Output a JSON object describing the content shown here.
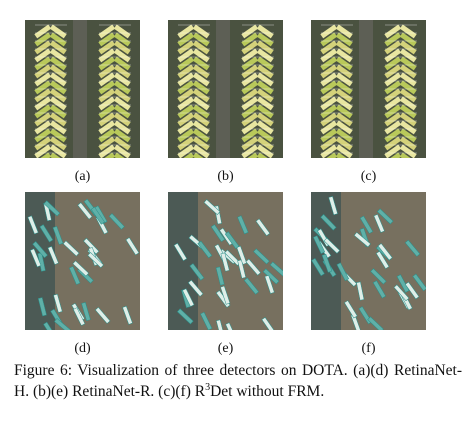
{
  "panels": [
    {
      "label": "(a)"
    },
    {
      "label": "(b)"
    },
    {
      "label": "(c)"
    },
    {
      "label": "(d)"
    },
    {
      "label": "(e)"
    },
    {
      "label": "(f)"
    }
  ],
  "caption": {
    "lead": "Figure 6: Visualization of three detectors on DOTA. (a)(d) RetinaNet-H. (b)(e) RetinaNet-R. (c)(f) R",
    "sup": "3",
    "tail": "Det without FRM."
  }
}
